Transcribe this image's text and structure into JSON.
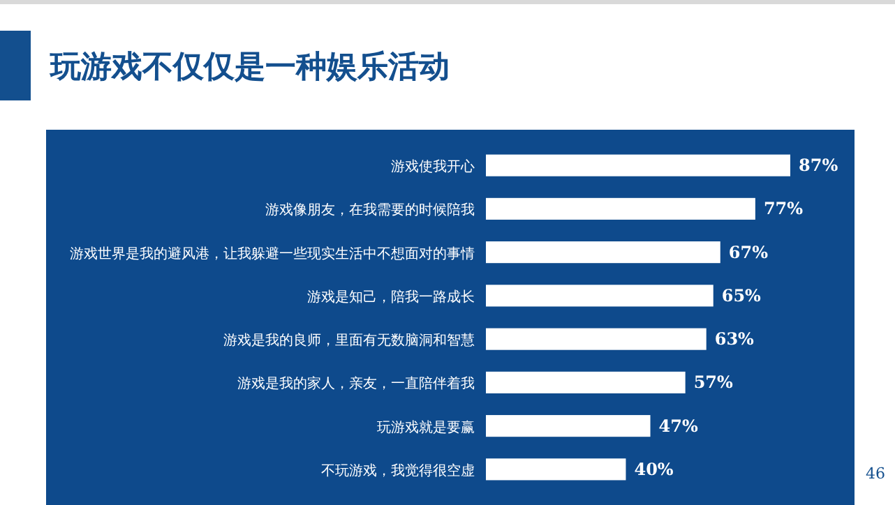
{
  "chart_data": {
    "type": "bar",
    "orientation": "horizontal",
    "title": "玩游戏不仅仅是一种娱乐活动",
    "categories": [
      "游戏使我开心",
      "游戏像朋友，在我需要的时候陪我",
      "游戏世界是我的避风港，让我躲避一些现实生活中不想面对的事情",
      "游戏是知己，陪我一路成长",
      "游戏是我的良师，里面有无数脑洞和智慧",
      "游戏是我的家人，亲友，一直陪伴着我",
      "玩游戏就是要赢",
      "不玩游戏，我觉得很空虚"
    ],
    "values": [
      87,
      77,
      67,
      65,
      63,
      57,
      47,
      40
    ],
    "value_labels": [
      "87%",
      "77%",
      "67%",
      "65%",
      "63%",
      "57%",
      "47%",
      "40%"
    ],
    "color": "#ffffff",
    "annotations": [
      "46"
    ]
  }
}
